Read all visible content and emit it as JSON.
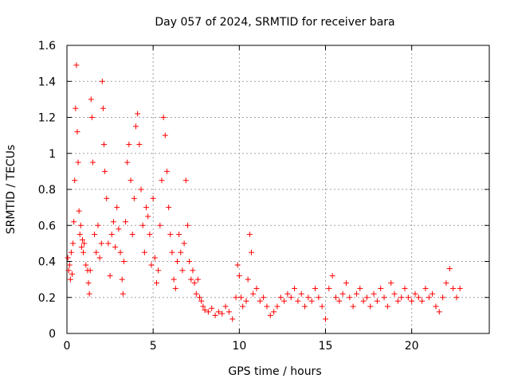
{
  "chart_data": {
    "type": "scatter",
    "title": "Day 057 of 2024, SRMTID for receiver bara",
    "xlabel": "GPS time / hours",
    "ylabel": "SRMTID / TECUs",
    "xlim": [
      0,
      24.5
    ],
    "ylim": [
      0,
      1.6
    ],
    "xticks": [
      0,
      5,
      10,
      15,
      20
    ],
    "xtick_labels": [
      "0",
      "5",
      "10",
      "15",
      "20"
    ],
    "yticks": [
      0,
      0.2,
      0.4,
      0.6,
      0.8,
      1.0,
      1.2,
      1.4,
      1.6
    ],
    "ytick_labels": [
      "0",
      "0.2",
      "0.4",
      "0.6",
      "0.8",
      "1",
      "1.2",
      "1.4",
      "1.6"
    ],
    "grid": true,
    "marker": "+",
    "color": "#ff0000",
    "series": [
      {
        "name": "SRMTID",
        "points": [
          [
            0.05,
            0.42
          ],
          [
            0.1,
            0.35
          ],
          [
            0.15,
            0.38
          ],
          [
            0.2,
            0.3
          ],
          [
            0.25,
            0.45
          ],
          [
            0.3,
            0.33
          ],
          [
            0.35,
            0.5
          ],
          [
            0.4,
            0.62
          ],
          [
            0.45,
            0.85
          ],
          [
            0.5,
            1.25
          ],
          [
            0.55,
            1.49
          ],
          [
            0.6,
            1.12
          ],
          [
            0.65,
            0.95
          ],
          [
            0.7,
            0.68
          ],
          [
            0.75,
            0.55
          ],
          [
            0.8,
            0.6
          ],
          [
            0.85,
            0.48
          ],
          [
            0.9,
            0.52
          ],
          [
            0.95,
            0.45
          ],
          [
            1.0,
            0.5
          ],
          [
            1.1,
            0.38
          ],
          [
            1.2,
            0.35
          ],
          [
            1.25,
            0.28
          ],
          [
            1.3,
            0.22
          ],
          [
            1.35,
            0.35
          ],
          [
            1.4,
            1.3
          ],
          [
            1.45,
            1.2
          ],
          [
            1.5,
            0.95
          ],
          [
            1.6,
            0.55
          ],
          [
            1.7,
            0.45
          ],
          [
            1.8,
            0.6
          ],
          [
            1.9,
            0.42
          ],
          [
            2.0,
            0.5
          ],
          [
            2.05,
            1.4
          ],
          [
            2.1,
            1.25
          ],
          [
            2.15,
            1.05
          ],
          [
            2.2,
            0.9
          ],
          [
            2.3,
            0.75
          ],
          [
            2.4,
            0.5
          ],
          [
            2.5,
            0.32
          ],
          [
            2.6,
            0.55
          ],
          [
            2.7,
            0.62
          ],
          [
            2.8,
            0.48
          ],
          [
            2.9,
            0.7
          ],
          [
            3.0,
            0.58
          ],
          [
            3.1,
            0.45
          ],
          [
            3.2,
            0.3
          ],
          [
            3.25,
            0.22
          ],
          [
            3.3,
            0.4
          ],
          [
            3.4,
            0.62
          ],
          [
            3.5,
            0.95
          ],
          [
            3.6,
            1.05
          ],
          [
            3.7,
            0.85
          ],
          [
            3.8,
            0.55
          ],
          [
            3.9,
            0.75
          ],
          [
            4.0,
            1.15
          ],
          [
            4.1,
            1.22
          ],
          [
            4.2,
            1.05
          ],
          [
            4.3,
            0.8
          ],
          [
            4.4,
            0.6
          ],
          [
            4.5,
            0.45
          ],
          [
            4.6,
            0.7
          ],
          [
            4.7,
            0.65
          ],
          [
            4.8,
            0.55
          ],
          [
            4.9,
            0.38
          ],
          [
            5.0,
            0.75
          ],
          [
            5.1,
            0.42
          ],
          [
            5.2,
            0.28
          ],
          [
            5.3,
            0.35
          ],
          [
            5.4,
            0.6
          ],
          [
            5.5,
            0.85
          ],
          [
            5.6,
            1.2
          ],
          [
            5.7,
            1.1
          ],
          [
            5.8,
            0.9
          ],
          [
            5.9,
            0.7
          ],
          [
            6.0,
            0.55
          ],
          [
            6.1,
            0.45
          ],
          [
            6.2,
            0.3
          ],
          [
            6.3,
            0.25
          ],
          [
            6.4,
            0.4
          ],
          [
            6.5,
            0.55
          ],
          [
            6.6,
            0.45
          ],
          [
            6.7,
            0.35
          ],
          [
            6.8,
            0.5
          ],
          [
            6.9,
            0.85
          ],
          [
            7.0,
            0.6
          ],
          [
            7.1,
            0.4
          ],
          [
            7.2,
            0.3
          ],
          [
            7.3,
            0.35
          ],
          [
            7.4,
            0.28
          ],
          [
            7.5,
            0.22
          ],
          [
            7.6,
            0.3
          ],
          [
            7.7,
            0.2
          ],
          [
            7.8,
            0.18
          ],
          [
            7.9,
            0.15
          ],
          [
            8.0,
            0.13
          ],
          [
            8.2,
            0.12
          ],
          [
            8.4,
            0.14
          ],
          [
            8.6,
            0.1
          ],
          [
            8.8,
            0.12
          ],
          [
            9.0,
            0.11
          ],
          [
            9.2,
            0.15
          ],
          [
            9.4,
            0.12
          ],
          [
            9.6,
            0.08
          ],
          [
            9.8,
            0.2
          ],
          [
            9.9,
            0.38
          ],
          [
            10.0,
            0.32
          ],
          [
            10.1,
            0.2
          ],
          [
            10.2,
            0.15
          ],
          [
            10.4,
            0.18
          ],
          [
            10.5,
            0.3
          ],
          [
            10.6,
            0.55
          ],
          [
            10.7,
            0.45
          ],
          [
            10.8,
            0.22
          ],
          [
            11.0,
            0.25
          ],
          [
            11.2,
            0.18
          ],
          [
            11.4,
            0.2
          ],
          [
            11.6,
            0.15
          ],
          [
            11.8,
            0.1
          ],
          [
            12.0,
            0.12
          ],
          [
            12.2,
            0.15
          ],
          [
            12.4,
            0.2
          ],
          [
            12.6,
            0.18
          ],
          [
            12.8,
            0.22
          ],
          [
            13.0,
            0.2
          ],
          [
            13.2,
            0.25
          ],
          [
            13.4,
            0.18
          ],
          [
            13.6,
            0.22
          ],
          [
            13.8,
            0.15
          ],
          [
            14.0,
            0.2
          ],
          [
            14.2,
            0.18
          ],
          [
            14.4,
            0.25
          ],
          [
            14.6,
            0.2
          ],
          [
            14.8,
            0.15
          ],
          [
            15.0,
            0.08
          ],
          [
            15.2,
            0.25
          ],
          [
            15.4,
            0.32
          ],
          [
            15.6,
            0.2
          ],
          [
            15.8,
            0.18
          ],
          [
            16.0,
            0.22
          ],
          [
            16.2,
            0.28
          ],
          [
            16.4,
            0.2
          ],
          [
            16.6,
            0.15
          ],
          [
            16.8,
            0.22
          ],
          [
            17.0,
            0.25
          ],
          [
            17.2,
            0.18
          ],
          [
            17.4,
            0.2
          ],
          [
            17.6,
            0.15
          ],
          [
            17.8,
            0.22
          ],
          [
            18.0,
            0.18
          ],
          [
            18.2,
            0.25
          ],
          [
            18.4,
            0.2
          ],
          [
            18.6,
            0.15
          ],
          [
            18.8,
            0.28
          ],
          [
            19.0,
            0.22
          ],
          [
            19.2,
            0.18
          ],
          [
            19.4,
            0.2
          ],
          [
            19.6,
            0.25
          ],
          [
            19.8,
            0.2
          ],
          [
            20.0,
            0.18
          ],
          [
            20.2,
            0.22
          ],
          [
            20.4,
            0.2
          ],
          [
            20.6,
            0.18
          ],
          [
            20.8,
            0.25
          ],
          [
            21.0,
            0.2
          ],
          [
            21.2,
            0.22
          ],
          [
            21.4,
            0.15
          ],
          [
            21.6,
            0.12
          ],
          [
            21.8,
            0.2
          ],
          [
            22.0,
            0.28
          ],
          [
            22.2,
            0.36
          ],
          [
            22.4,
            0.25
          ],
          [
            22.6,
            0.2
          ],
          [
            22.8,
            0.25
          ]
        ]
      }
    ]
  }
}
